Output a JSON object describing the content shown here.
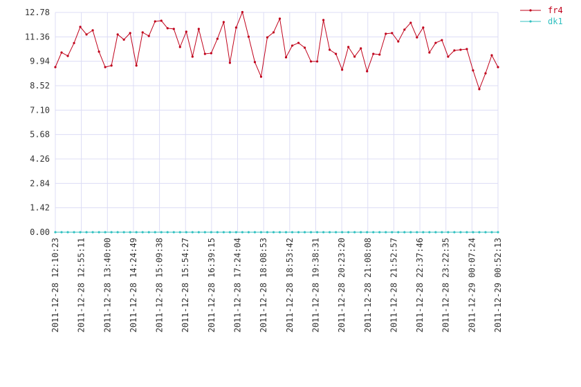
{
  "chart_data": {
    "type": "line",
    "xlim": [
      0,
      71
    ],
    "xticks": [
      {
        "value": 0,
        "label": "2011-12-28 12:10:23"
      },
      {
        "value": 4.176,
        "label": "2011-12-28 12:55:11"
      },
      {
        "value": 8.353,
        "label": "2011-12-28 13:40:00"
      },
      {
        "value": 12.529,
        "label": "2011-12-28 14:24:49"
      },
      {
        "value": 16.706,
        "label": "2011-12-28 15:09:38"
      },
      {
        "value": 20.882,
        "label": "2011-12-28 15:54:27"
      },
      {
        "value": 25.059,
        "label": "2011-12-28 16:39:15"
      },
      {
        "value": 29.235,
        "label": "2011-12-28 17:24:04"
      },
      {
        "value": 33.412,
        "label": "2011-12-28 18:08:53"
      },
      {
        "value": 37.588,
        "label": "2011-12-28 18:53:42"
      },
      {
        "value": 41.765,
        "label": "2011-12-28 19:38:31"
      },
      {
        "value": 45.941,
        "label": "2011-12-28 20:23:20"
      },
      {
        "value": 50.118,
        "label": "2011-12-28 21:08:08"
      },
      {
        "value": 54.294,
        "label": "2011-12-28 21:52:57"
      },
      {
        "value": 58.471,
        "label": "2011-12-28 22:37:46"
      },
      {
        "value": 62.647,
        "label": "2011-12-28 23:22:35"
      },
      {
        "value": 66.824,
        "label": "2011-12-29 00:07:24"
      },
      {
        "value": 71,
        "label": "2011-12-29 00:52:13"
      }
    ],
    "ylim": [
      0,
      12.78
    ],
    "yticks": [
      {
        "value": 0,
        "label": "0.00"
      },
      1.42,
      2.84,
      4.26,
      5.68,
      {
        "value": 7.1,
        "label": "7.10"
      },
      8.52,
      9.94,
      11.36,
      12.78
    ],
    "grid": true,
    "legend": "top-right",
    "series": [
      {
        "name": "fr4",
        "color": "#c0001a",
        "values": [
          9.6,
          10.45,
          10.25,
          11.0,
          11.94,
          11.5,
          11.74,
          10.5,
          9.6,
          9.69,
          11.5,
          11.2,
          11.58,
          9.69,
          11.62,
          11.41,
          12.26,
          12.3,
          11.86,
          11.82,
          10.77,
          11.66,
          10.21,
          11.82,
          10.37,
          10.41,
          11.25,
          12.22,
          9.85,
          11.9,
          12.8,
          11.37,
          9.89,
          9.04,
          11.33,
          11.62,
          12.42,
          10.17,
          10.85,
          11.01,
          10.73,
          9.93,
          9.93,
          12.34,
          10.61,
          10.37,
          9.45,
          10.77,
          10.21,
          10.69,
          9.36,
          10.37,
          10.33,
          11.54,
          11.58,
          11.09,
          11.78,
          12.18,
          11.33,
          11.9,
          10.45,
          11.01,
          11.17,
          10.21,
          10.57,
          10.61,
          10.65,
          9.41,
          8.32,
          9.24,
          10.29,
          9.6
        ]
      },
      {
        "name": "dk1",
        "color": "#30c0c0",
        "values": [
          0,
          0,
          0,
          0,
          0,
          0,
          0,
          0,
          0,
          0,
          0,
          0,
          0,
          0,
          0,
          0,
          0,
          0,
          0,
          0,
          0,
          0,
          0,
          0,
          0,
          0,
          0,
          0,
          0,
          0,
          0,
          0,
          0,
          0,
          0,
          0,
          0,
          0,
          0,
          0,
          0,
          0,
          0,
          0,
          0,
          0,
          0,
          0,
          0,
          0,
          0,
          0,
          0,
          0,
          0,
          0,
          0,
          0,
          0,
          0,
          0,
          0,
          0,
          0,
          0,
          0,
          0,
          0,
          0,
          0,
          0,
          0
        ]
      }
    ]
  }
}
